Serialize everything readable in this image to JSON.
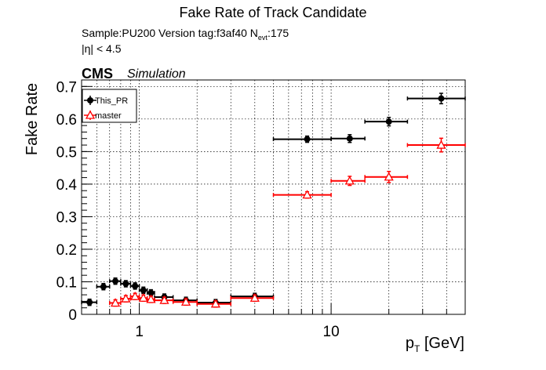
{
  "header": {
    "title": "Fake Rate of Track Candidate",
    "sample_prefix": "Sample:PU200   Version tag:f3af40  N",
    "sample_sub": "evt",
    "sample_suffix": ":175",
    "eta_cut": "|η| < 4.5",
    "cms": "CMS",
    "simulation": "Simulation"
  },
  "chart_data": {
    "type": "scatter",
    "title": "Fake Rate of Track Candidate",
    "xlabel": "p",
    "xlabel_sub": "T",
    "xlabel_unit": " [GeV]",
    "ylabel": "Fake Rate",
    "xscale": "log",
    "xlim": [
      0.5,
      50
    ],
    "ylim": [
      0,
      0.72
    ],
    "yticks": [
      0,
      0.1,
      0.2,
      0.3,
      0.4,
      0.5,
      0.6,
      0.7
    ],
    "yticklabels": [
      "0",
      "0.1",
      "0.2",
      "0.3",
      "0.4",
      "0.5",
      "0.6",
      "0.7"
    ],
    "xticks": [
      1,
      10
    ],
    "xticklabels": [
      "1",
      "10"
    ],
    "grid": true,
    "legend_position": "top-left",
    "series": [
      {
        "name": "This_PR",
        "color": "#000000",
        "marker": "filled-circle",
        "points": [
          {
            "x": 0.55,
            "xlo": 0.5,
            "xhi": 0.6,
            "y": 0.037,
            "err": 0.004
          },
          {
            "x": 0.65,
            "xlo": 0.6,
            "xhi": 0.7,
            "y": 0.085,
            "err": 0.005
          },
          {
            "x": 0.75,
            "xlo": 0.7,
            "xhi": 0.8,
            "y": 0.102,
            "err": 0.005
          },
          {
            "x": 0.85,
            "xlo": 0.8,
            "xhi": 0.9,
            "y": 0.094,
            "err": 0.005
          },
          {
            "x": 0.95,
            "xlo": 0.9,
            "xhi": 1.0,
            "y": 0.087,
            "err": 0.005
          },
          {
            "x": 1.05,
            "xlo": 1.0,
            "xhi": 1.1,
            "y": 0.074,
            "err": 0.005
          },
          {
            "x": 1.15,
            "xlo": 1.1,
            "xhi": 1.2,
            "y": 0.066,
            "err": 0.004
          },
          {
            "x": 1.35,
            "xlo": 1.2,
            "xhi": 1.5,
            "y": 0.053,
            "err": 0.004
          },
          {
            "x": 1.75,
            "xlo": 1.5,
            "xhi": 2.0,
            "y": 0.043,
            "err": 0.004
          },
          {
            "x": 2.5,
            "xlo": 2.0,
            "xhi": 3.0,
            "y": 0.036,
            "err": 0.004
          },
          {
            "x": 4.0,
            "xlo": 3.0,
            "xhi": 5.0,
            "y": 0.055,
            "err": 0.005
          },
          {
            "x": 7.5,
            "xlo": 5.0,
            "xhi": 10.0,
            "y": 0.538,
            "err": 0.004
          },
          {
            "x": 12.5,
            "xlo": 10.0,
            "xhi": 15.0,
            "y": 0.54,
            "err": 0.012
          },
          {
            "x": 20.0,
            "xlo": 15.0,
            "xhi": 25.0,
            "y": 0.592,
            "err": 0.013
          },
          {
            "x": 37.5,
            "xlo": 25.0,
            "xhi": 50.0,
            "y": 0.663,
            "err": 0.016
          }
        ]
      },
      {
        "name": "master",
        "color": "#ff0000",
        "marker": "open-triangle",
        "points": [
          {
            "x": 0.75,
            "xlo": 0.7,
            "xhi": 0.8,
            "y": 0.035,
            "err": 0.004
          },
          {
            "x": 0.85,
            "xlo": 0.8,
            "xhi": 0.9,
            "y": 0.048,
            "err": 0.004
          },
          {
            "x": 0.95,
            "xlo": 0.9,
            "xhi": 1.0,
            "y": 0.055,
            "err": 0.004
          },
          {
            "x": 1.05,
            "xlo": 1.0,
            "xhi": 1.1,
            "y": 0.05,
            "err": 0.004
          },
          {
            "x": 1.15,
            "xlo": 1.1,
            "xhi": 1.2,
            "y": 0.046,
            "err": 0.004
          },
          {
            "x": 1.35,
            "xlo": 1.2,
            "xhi": 1.5,
            "y": 0.043,
            "err": 0.004
          },
          {
            "x": 1.75,
            "xlo": 1.5,
            "xhi": 2.0,
            "y": 0.038,
            "err": 0.004
          },
          {
            "x": 2.5,
            "xlo": 2.0,
            "xhi": 3.0,
            "y": 0.032,
            "err": 0.004
          },
          {
            "x": 4.0,
            "xlo": 3.0,
            "xhi": 5.0,
            "y": 0.05,
            "err": 0.005
          },
          {
            "x": 7.5,
            "xlo": 5.0,
            "xhi": 10.0,
            "y": 0.367,
            "err": 0.006
          },
          {
            "x": 12.5,
            "xlo": 10.0,
            "xhi": 15.0,
            "y": 0.41,
            "err": 0.014
          },
          {
            "x": 20.0,
            "xlo": 15.0,
            "xhi": 25.0,
            "y": 0.422,
            "err": 0.017
          },
          {
            "x": 37.5,
            "xlo": 25.0,
            "xhi": 50.0,
            "y": 0.52,
            "err": 0.021
          }
        ]
      }
    ]
  }
}
